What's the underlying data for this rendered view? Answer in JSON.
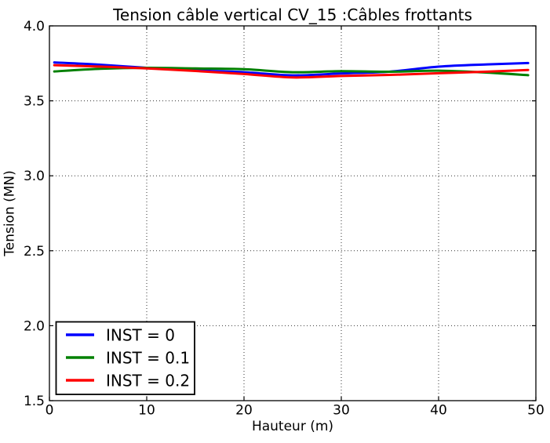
{
  "figure": {
    "background": "#ffffff",
    "axis_color": "#000000",
    "grid_color": "#333333"
  },
  "chart_data": {
    "type": "line",
    "title": "Tension câble vertical CV_15 :Câbles frottants",
    "xlabel": "Hauteur (m)",
    "ylabel": "Tension (MN)",
    "xlim": [
      0,
      50
    ],
    "ylim": [
      1.5,
      4.0
    ],
    "xticks": [
      0,
      10,
      20,
      30,
      40,
      50
    ],
    "yticks": [
      1.5,
      2.0,
      2.5,
      3.0,
      3.5,
      4.0
    ],
    "xtick_labels": [
      "0",
      "10",
      "20",
      "30",
      "40",
      "50"
    ],
    "ytick_labels": [
      "1.5",
      "2.0",
      "2.5",
      "3.0",
      "3.5",
      "4.0"
    ],
    "grid": true,
    "grid_style": "dotted",
    "line_width": 3,
    "legend": {
      "position": "lower-left",
      "entries": [
        "INST = 0",
        "INST = 0.1",
        "INST = 0.2"
      ]
    },
    "x": [
      0.5,
      5,
      10,
      15,
      20,
      25,
      30,
      35,
      40,
      45,
      49.2
    ],
    "series": [
      {
        "name": "INST = 0",
        "color": "#0000ff",
        "values": [
          3.756,
          3.742,
          3.72,
          3.703,
          3.691,
          3.67,
          3.683,
          3.695,
          3.728,
          3.743,
          3.752
        ]
      },
      {
        "name": "INST = 0.1",
        "color": "#008000",
        "values": [
          3.696,
          3.713,
          3.72,
          3.716,
          3.711,
          3.691,
          3.698,
          3.694,
          3.701,
          3.688,
          3.671
        ]
      },
      {
        "name": "INST = 0.2",
        "color": "#ff0000",
        "values": [
          3.738,
          3.729,
          3.716,
          3.699,
          3.679,
          3.656,
          3.666,
          3.673,
          3.684,
          3.695,
          3.706
        ]
      }
    ]
  }
}
